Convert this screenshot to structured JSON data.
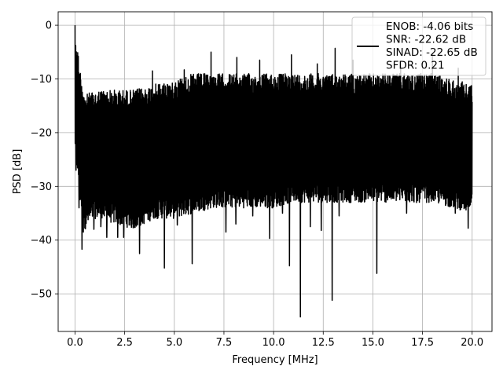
{
  "chart_data": {
    "type": "line",
    "xlabel": "Frequency [MHz]",
    "ylabel": "PSD [dB]",
    "xlim": [
      -0.85,
      21.0
    ],
    "ylim": [
      -57.0,
      2.5
    ],
    "xticks": [
      0.0,
      2.5,
      5.0,
      7.5,
      10.0,
      12.5,
      15.0,
      17.5,
      20.0
    ],
    "xtick_labels": [
      "0.0",
      "2.5",
      "5.0",
      "7.5",
      "10.0",
      "12.5",
      "15.0",
      "17.5",
      "20.0"
    ],
    "yticks": [
      0,
      -10,
      -20,
      -30,
      -40,
      -50
    ],
    "ytick_labels": [
      "0",
      "−10",
      "−20",
      "−30",
      "−40",
      "−50"
    ],
    "grid": true,
    "legend_position": "upper right",
    "legend": [
      "ENOB: -4.06 bits",
      "SNR: -22.62 dB",
      "SINAD: -22.65 dB",
      "SFDR: 0.21"
    ],
    "series": [
      {
        "color": "#000000",
        "x_range": [
          0.0,
          20.0
        ],
        "peak": {
          "x": 0.0,
          "y": 0.0
        },
        "band": [
          {
            "x": 0.0,
            "min": -22,
            "max": 0
          },
          {
            "x": 0.25,
            "min": -33,
            "max": -8
          },
          {
            "x": 0.5,
            "min": -38,
            "max": -13
          },
          {
            "x": 1.0,
            "min": -36,
            "max": -12
          },
          {
            "x": 2.0,
            "min": -37,
            "max": -12
          },
          {
            "x": 3.0,
            "min": -38,
            "max": -12
          },
          {
            "x": 4.0,
            "min": -36,
            "max": -11
          },
          {
            "x": 5.0,
            "min": -36,
            "max": -10
          },
          {
            "x": 6.0,
            "min": -35,
            "max": -9
          },
          {
            "x": 7.0,
            "min": -34,
            "max": -9
          },
          {
            "x": 8.0,
            "min": -34,
            "max": -9
          },
          {
            "x": 9.0,
            "min": -34,
            "max": -9
          },
          {
            "x": 10.0,
            "min": -34,
            "max": -9
          },
          {
            "x": 11.0,
            "min": -33,
            "max": -9
          },
          {
            "x": 12.0,
            "min": -33,
            "max": -9
          },
          {
            "x": 13.0,
            "min": -33,
            "max": -9
          },
          {
            "x": 14.0,
            "min": -33,
            "max": -9
          },
          {
            "x": 15.0,
            "min": -33,
            "max": -9
          },
          {
            "x": 16.0,
            "min": -33,
            "max": -9
          },
          {
            "x": 17.0,
            "min": -33,
            "max": -9
          },
          {
            "x": 18.0,
            "min": -33,
            "max": -9
          },
          {
            "x": 19.0,
            "min": -34,
            "max": -10
          },
          {
            "x": 20.0,
            "min": -35,
            "max": -11
          }
        ],
        "spikes": [
          {
            "x": 0.05,
            "y": -27
          },
          {
            "x": 0.2,
            "y": -34
          },
          {
            "x": 0.35,
            "y": -41.7
          },
          {
            "x": 0.42,
            "y": -38.5
          },
          {
            "x": 0.5,
            "y": -37.5
          },
          {
            "x": 0.95,
            "y": -38
          },
          {
            "x": 1.3,
            "y": -37.5
          },
          {
            "x": 1.6,
            "y": -39.5
          },
          {
            "x": 2.15,
            "y": -39.5
          },
          {
            "x": 2.45,
            "y": -39.5
          },
          {
            "x": 3.25,
            "y": -42.5
          },
          {
            "x": 3.75,
            "y": -34
          },
          {
            "x": 4.5,
            "y": -45.2
          },
          {
            "x": 4.85,
            "y": -32.5
          },
          {
            "x": 5.15,
            "y": -37.2
          },
          {
            "x": 5.65,
            "y": -32
          },
          {
            "x": 5.9,
            "y": -44.4
          },
          {
            "x": 6.2,
            "y": -32
          },
          {
            "x": 7.6,
            "y": -38.5
          },
          {
            "x": 8.1,
            "y": -37
          },
          {
            "x": 8.95,
            "y": -35.5
          },
          {
            "x": 9.8,
            "y": -39.7
          },
          {
            "x": 10.45,
            "y": -35
          },
          {
            "x": 10.8,
            "y": -44.8
          },
          {
            "x": 11.35,
            "y": -54.3
          },
          {
            "x": 11.85,
            "y": -37.5
          },
          {
            "x": 12.4,
            "y": -38.2
          },
          {
            "x": 12.95,
            "y": -51.2
          },
          {
            "x": 13.3,
            "y": -35.5
          },
          {
            "x": 13.8,
            "y": -29.5
          },
          {
            "x": 15.2,
            "y": -46.2
          },
          {
            "x": 16.0,
            "y": -32.2
          },
          {
            "x": 16.7,
            "y": -35
          },
          {
            "x": 17.2,
            "y": -33
          },
          {
            "x": 17.75,
            "y": -31.5
          },
          {
            "x": 18.55,
            "y": -31
          },
          {
            "x": 19.15,
            "y": -35
          },
          {
            "x": 19.8,
            "y": -37.8
          },
          {
            "x": 6.85,
            "y": -5
          },
          {
            "x": 8.15,
            "y": -6
          },
          {
            "x": 10.9,
            "y": -5.5
          },
          {
            "x": 12.2,
            "y": -7.2
          },
          {
            "x": 13.1,
            "y": -4.3
          },
          {
            "x": 14.0,
            "y": -6.5
          },
          {
            "x": 16.4,
            "y": -7.6
          },
          {
            "x": 18.0,
            "y": -5.3
          },
          {
            "x": 9.3,
            "y": -6.5
          },
          {
            "x": 3.9,
            "y": -8.5
          },
          {
            "x": 5.5,
            "y": -8.3
          },
          {
            "x": 19.3,
            "y": -8
          }
        ]
      }
    ]
  }
}
